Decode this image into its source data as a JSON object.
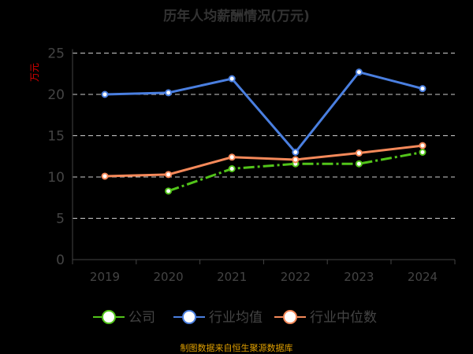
{
  "chart_data": {
    "type": "line",
    "title": "历年人均薪酬情况(万元)",
    "ylabel": "万元",
    "ylim": [
      0,
      25
    ],
    "yticks": [
      0,
      5,
      10,
      15,
      20,
      25
    ],
    "categories": [
      "2019",
      "2020",
      "2021",
      "2022",
      "2023",
      "2024"
    ],
    "series": [
      {
        "name": "公司",
        "color": "#52c41a",
        "dashed": true,
        "values": [
          null,
          8.3,
          11.0,
          11.6,
          11.6,
          13.0
        ]
      },
      {
        "name": "行业均值",
        "color": "#4a7fe0",
        "dashed": false,
        "values": [
          20.0,
          20.2,
          21.9,
          13.0,
          22.7,
          20.7
        ]
      },
      {
        "name": "行业中位数",
        "color": "#f5895a",
        "dashed": false,
        "values": [
          10.1,
          10.3,
          12.4,
          12.1,
          12.9,
          13.8
        ]
      }
    ],
    "legend": "bottom",
    "grid": true
  },
  "footer": "制图数据来自恒生聚源数据库"
}
